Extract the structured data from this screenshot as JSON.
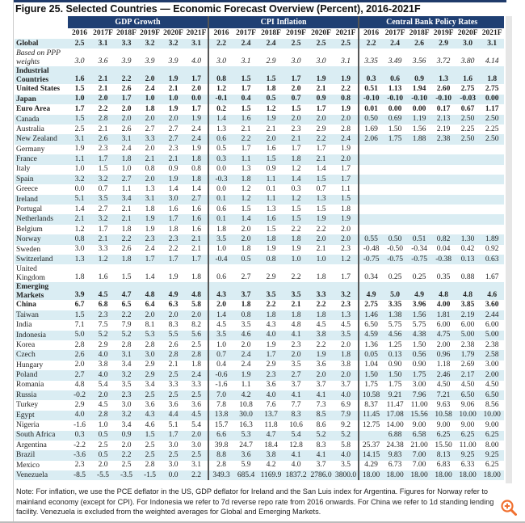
{
  "title": "Figure 25. Selected Countries — Economic Forecast Overview (Percent), 2016-2021F",
  "groups": [
    "GDP Growth",
    "CPI Inflation",
    "Central Bank Policy Rates"
  ],
  "years": [
    "2016",
    "2017F",
    "2018F",
    "2019F",
    "2020F",
    "2021F"
  ],
  "rows": [
    {
      "name": "Global",
      "style": "b",
      "gdp": [
        "2.5",
        "3.1",
        "3.3",
        "3.2",
        "3.2",
        "3.1"
      ],
      "cpi": [
        "2.2",
        "2.4",
        "2.4",
        "2.5",
        "2.5",
        "2.5"
      ],
      "cb": [
        "2.2",
        "2.4",
        "2.6",
        "2.9",
        "3.0",
        "3.1"
      ]
    },
    {
      "name": "Based on PPP weights",
      "style": "i two",
      "gdp": [
        "3.0",
        "3.6",
        "3.9",
        "3.9",
        "3.9",
        "4.0"
      ],
      "cpi": [
        "3.0",
        "3.1",
        "2.9",
        "3.0",
        "3.0",
        "3.1"
      ],
      "cb": [
        "3.35",
        "3.49",
        "3.56",
        "3.72",
        "3.80",
        "4.14"
      ]
    },
    {
      "name": "Industrial Countries",
      "style": "b two",
      "gdp": [
        "1.6",
        "2.1",
        "2.2",
        "2.0",
        "1.9",
        "1.7"
      ],
      "cpi": [
        "0.8",
        "1.5",
        "1.5",
        "1.7",
        "1.9",
        "1.9"
      ],
      "cb": [
        "0.3",
        "0.6",
        "0.9",
        "1.3",
        "1.6",
        "1.8"
      ]
    },
    {
      "name": "United States",
      "style": "b",
      "gdp": [
        "1.5",
        "2.1",
        "2.6",
        "2.4",
        "2.1",
        "2.0"
      ],
      "cpi": [
        "1.2",
        "1.7",
        "1.8",
        "2.0",
        "2.1",
        "2.2"
      ],
      "cb": [
        "0.51",
        "1.13",
        "1.94",
        "2.60",
        "2.75",
        "2.75"
      ]
    },
    {
      "name": "Japan",
      "style": "b",
      "gdp": [
        "1.0",
        "2.0",
        "1.7",
        "1.0",
        "1.0",
        "0.0"
      ],
      "cpi": [
        "-0.1",
        "0.4",
        "0.5",
        "0.7",
        "0.9",
        "0.8"
      ],
      "cb": [
        "-0.10",
        "-0.10",
        "-0.10",
        "-0.10",
        "-0.03",
        "0.00"
      ]
    },
    {
      "name": "Euro Area",
      "style": "b",
      "gdp": [
        "1.7",
        "2.2",
        "2.0",
        "1.8",
        "1.9",
        "1.7"
      ],
      "cpi": [
        "0.2",
        "1.5",
        "1.2",
        "1.5",
        "1.7",
        "1.9"
      ],
      "cb": [
        "0.01",
        "0.00",
        "0.00",
        "0.17",
        "0.67",
        "1.17"
      ]
    },
    {
      "name": "Canada",
      "style": "",
      "gdp": [
        "1.5",
        "2.8",
        "2.0",
        "2.0",
        "2.0",
        "1.9"
      ],
      "cpi": [
        "1.4",
        "1.6",
        "1.9",
        "2.0",
        "2.0",
        "2.0"
      ],
      "cb": [
        "0.50",
        "0.69",
        "1.19",
        "2.13",
        "2.50",
        "2.50"
      ]
    },
    {
      "name": "Australia",
      "style": "",
      "gdp": [
        "2.5",
        "2.1",
        "2.6",
        "2.7",
        "2.7",
        "2.4"
      ],
      "cpi": [
        "1.3",
        "2.1",
        "2.1",
        "2.3",
        "2.9",
        "2.8"
      ],
      "cb": [
        "1.69",
        "1.50",
        "1.56",
        "2.19",
        "2.25",
        "2.25"
      ]
    },
    {
      "name": "New Zealand",
      "style": "",
      "gdp": [
        "3.1",
        "2.6",
        "3.1",
        "3.3",
        "2.7",
        "2.4"
      ],
      "cpi": [
        "0.6",
        "2.2",
        "2.0",
        "2.1",
        "2.2",
        "2.4"
      ],
      "cb": [
        "2.06",
        "1.75",
        "1.88",
        "2.38",
        "2.50",
        "2.50"
      ]
    },
    {
      "name": "Germany",
      "style": "",
      "gdp": [
        "1.9",
        "2.3",
        "2.4",
        "2.0",
        "2.3",
        "1.9"
      ],
      "cpi": [
        "0.5",
        "1.7",
        "1.6",
        "1.7",
        "1.7",
        "1.9"
      ],
      "cb": [
        "",
        "",
        "",
        "",
        "",
        ""
      ]
    },
    {
      "name": "France",
      "style": "",
      "gdp": [
        "1.1",
        "1.7",
        "1.8",
        "2.1",
        "2.1",
        "1.8"
      ],
      "cpi": [
        "0.3",
        "1.1",
        "1.5",
        "1.8",
        "2.1",
        "2.0"
      ],
      "cb": [
        "",
        "",
        "",
        "",
        "",
        ""
      ]
    },
    {
      "name": "Italy",
      "style": "",
      "gdp": [
        "1.0",
        "1.5",
        "1.0",
        "0.8",
        "0.9",
        "0.8"
      ],
      "cpi": [
        "0.0",
        "1.3",
        "0.9",
        "1.2",
        "1.4",
        "1.7"
      ],
      "cb": [
        "",
        "",
        "",
        "",
        "",
        ""
      ]
    },
    {
      "name": "Spain",
      "style": "",
      "gdp": [
        "3.2",
        "3.2",
        "2.7",
        "2.0",
        "1.9",
        "1.8"
      ],
      "cpi": [
        "-0.3",
        "1.8",
        "1.1",
        "1.4",
        "1.5",
        "1.7"
      ],
      "cb": [
        "",
        "",
        "",
        "",
        "",
        ""
      ]
    },
    {
      "name": "Greece",
      "style": "",
      "gdp": [
        "0.0",
        "0.7",
        "1.1",
        "1.3",
        "1.4",
        "1.4"
      ],
      "cpi": [
        "0.0",
        "1.2",
        "0.1",
        "0.3",
        "0.7",
        "1.1"
      ],
      "cb": [
        "",
        "",
        "",
        "",
        "",
        ""
      ]
    },
    {
      "name": "Ireland",
      "style": "",
      "gdp": [
        "5.1",
        "3.5",
        "3.4",
        "3.1",
        "3.0",
        "2.7"
      ],
      "cpi": [
        "0.1",
        "1.2",
        "1.1",
        "1.2",
        "1.3",
        "1.5"
      ],
      "cb": [
        "",
        "",
        "",
        "",
        "",
        ""
      ]
    },
    {
      "name": "Portugal",
      "style": "",
      "gdp": [
        "1.4",
        "2.7",
        "2.1",
        "1.8",
        "1.6",
        "1.6"
      ],
      "cpi": [
        "0.6",
        "1.5",
        "1.3",
        "1.5",
        "1.5",
        "1.8"
      ],
      "cb": [
        "",
        "",
        "",
        "",
        "",
        ""
      ]
    },
    {
      "name": "Netherlands",
      "style": "",
      "gdp": [
        "2.1",
        "3.2",
        "2.1",
        "1.9",
        "1.7",
        "1.6"
      ],
      "cpi": [
        "0.1",
        "1.4",
        "1.6",
        "1.5",
        "1.9",
        "1.9"
      ],
      "cb": [
        "",
        "",
        "",
        "",
        "",
        ""
      ]
    },
    {
      "name": "Belgium",
      "style": "",
      "gdp": [
        "1.2",
        "1.7",
        "1.8",
        "1.9",
        "1.8",
        "1.6"
      ],
      "cpi": [
        "1.8",
        "2.0",
        "1.5",
        "2.2",
        "2.2",
        "2.0"
      ],
      "cb": [
        "",
        "",
        "",
        "",
        "",
        ""
      ]
    },
    {
      "name": "Norway",
      "style": "",
      "gdp": [
        "0.8",
        "2.1",
        "2.2",
        "2.3",
        "2.3",
        "2.1"
      ],
      "cpi": [
        "3.5",
        "2.0",
        "1.8",
        "1.8",
        "2.0",
        "2.0"
      ],
      "cb": [
        "0.55",
        "0.50",
        "0.51",
        "0.82",
        "1.30",
        "1.89"
      ]
    },
    {
      "name": "Sweden",
      "style": "",
      "gdp": [
        "3.0",
        "3.3",
        "2.6",
        "2.4",
        "2.2",
        "2.1"
      ],
      "cpi": [
        "1.0",
        "1.8",
        "1.9",
        "1.9",
        "2.1",
        "2.3"
      ],
      "cb": [
        "-0.48",
        "-0.50",
        "-0.34",
        "0.04",
        "0.42",
        "0.92"
      ]
    },
    {
      "name": "Switzerland",
      "style": "",
      "gdp": [
        "1.3",
        "1.2",
        "1.8",
        "1.7",
        "1.7",
        "1.7"
      ],
      "cpi": [
        "-0.4",
        "0.5",
        "0.8",
        "1.0",
        "1.0",
        "1.2"
      ],
      "cb": [
        "-0.75",
        "-0.75",
        "-0.75",
        "-0.38",
        "0.13",
        "0.63"
      ]
    },
    {
      "name": "United Kingdom",
      "style": "two",
      "gdp": [
        "1.8",
        "1.6",
        "1.5",
        "1.4",
        "1.9",
        "1.8"
      ],
      "cpi": [
        "0.6",
        "2.7",
        "2.9",
        "2.2",
        "1.8",
        "1.7"
      ],
      "cb": [
        "0.34",
        "0.25",
        "0.25",
        "0.35",
        "0.88",
        "1.67"
      ]
    },
    {
      "name": "Emerging Markets",
      "style": "b two",
      "gdp": [
        "3.9",
        "4.5",
        "4.7",
        "4.8",
        "4.9",
        "4.8"
      ],
      "cpi": [
        "4.3",
        "3.7",
        "3.5",
        "3.5",
        "3.3",
        "3.2"
      ],
      "cb": [
        "4.9",
        "5.0",
        "4.9",
        "4.8",
        "4.8",
        "4.6"
      ]
    },
    {
      "name": "China",
      "style": "b",
      "gdp": [
        "6.7",
        "6.8",
        "6.5",
        "6.4",
        "6.3",
        "5.8"
      ],
      "cpi": [
        "2.0",
        "1.8",
        "2.2",
        "2.1",
        "2.2",
        "2.3"
      ],
      "cb": [
        "2.75",
        "3.35",
        "3.96",
        "4.00",
        "3.85",
        "3.60"
      ]
    },
    {
      "name": "Taiwan",
      "style": "",
      "gdp": [
        "1.5",
        "2.3",
        "2.2",
        "2.0",
        "2.0",
        "2.0"
      ],
      "cpi": [
        "1.4",
        "0.8",
        "1.8",
        "1.8",
        "1.8",
        "1.3"
      ],
      "cb": [
        "1.46",
        "1.38",
        "1.56",
        "1.81",
        "2.19",
        "2.44"
      ]
    },
    {
      "name": "India",
      "style": "",
      "gdp": [
        "7.1",
        "7.5",
        "7.9",
        "8.1",
        "8.3",
        "8.2"
      ],
      "cpi": [
        "4.5",
        "3.5",
        "4.3",
        "4.8",
        "4.5",
        "4.5"
      ],
      "cb": [
        "6.50",
        "5.75",
        "5.75",
        "6.00",
        "6.00",
        "6.00"
      ]
    },
    {
      "name": "Indonesia",
      "style": "",
      "gdp": [
        "5.0",
        "5.2",
        "5.2",
        "5.3",
        "5.5",
        "5.6"
      ],
      "cpi": [
        "3.5",
        "4.6",
        "4.0",
        "4.1",
        "3.8",
        "3.5"
      ],
      "cb": [
        "4.59",
        "4.56",
        "4.38",
        "4.75",
        "5.00",
        "5.00"
      ]
    },
    {
      "name": "Korea",
      "style": "",
      "gdp": [
        "2.8",
        "2.9",
        "2.8",
        "2.8",
        "2.6",
        "2.5"
      ],
      "cpi": [
        "1.0",
        "2.0",
        "1.9",
        "2.3",
        "2.2",
        "2.0"
      ],
      "cb": [
        "1.36",
        "1.25",
        "1.50",
        "2.00",
        "2.38",
        "2.38"
      ]
    },
    {
      "name": "Czech",
      "style": "",
      "gdp": [
        "2.6",
        "4.0",
        "3.1",
        "3.0",
        "2.8",
        "2.8"
      ],
      "cpi": [
        "0.7",
        "2.4",
        "1.7",
        "2.0",
        "1.9",
        "1.8"
      ],
      "cb": [
        "0.05",
        "0.13",
        "0.56",
        "0.96",
        "1.79",
        "2.58"
      ]
    },
    {
      "name": "Hungary",
      "style": "",
      "gdp": [
        "2.0",
        "3.8",
        "3.4",
        "2.9",
        "2.1",
        "1.8"
      ],
      "cpi": [
        "0.4",
        "2.4",
        "2.9",
        "3.5",
        "3.6",
        "3.8"
      ],
      "cb": [
        "1.04",
        "0.90",
        "0.90",
        "1.18",
        "2.69",
        "3.00"
      ]
    },
    {
      "name": "Poland",
      "style": "",
      "gdp": [
        "2.7",
        "4.0",
        "3.2",
        "2.9",
        "2.5",
        "2.4"
      ],
      "cpi": [
        "-0.6",
        "1.9",
        "2.3",
        "2.7",
        "2.0",
        "2.0"
      ],
      "cb": [
        "1.50",
        "1.50",
        "1.75",
        "2.46",
        "2.17",
        "2.00"
      ]
    },
    {
      "name": "Romania",
      "style": "",
      "gdp": [
        "4.8",
        "5.4",
        "3.5",
        "3.4",
        "3.3",
        "3.3"
      ],
      "cpi": [
        "-1.6",
        "1.1",
        "3.6",
        "3.7",
        "3.7",
        "3.7"
      ],
      "cb": [
        "1.75",
        "1.75",
        "3.00",
        "4.50",
        "4.50",
        "4.50"
      ]
    },
    {
      "name": "Russia",
      "style": "",
      "gdp": [
        "-0.2",
        "2.0",
        "2.3",
        "2.5",
        "2.5",
        "2.5"
      ],
      "cpi": [
        "7.0",
        "4.2",
        "4.0",
        "4.1",
        "4.1",
        "4.0"
      ],
      "cb": [
        "10.58",
        "9.21",
        "7.96",
        "7.21",
        "6.50",
        "6.50"
      ]
    },
    {
      "name": "Turkey",
      "style": "",
      "gdp": [
        "2.9",
        "4.5",
        "3.0",
        "3.6",
        "3.6",
        "3.6"
      ],
      "cpi": [
        "7.8",
        "10.8",
        "7.6",
        "7.7",
        "7.3",
        "6.9"
      ],
      "cb": [
        "8.37",
        "11.47",
        "11.00",
        "9.63",
        "9.06",
        "8.56"
      ]
    },
    {
      "name": "Egypt",
      "style": "",
      "gdp": [
        "4.0",
        "2.8",
        "3.2",
        "4.3",
        "4.4",
        "4.5"
      ],
      "cpi": [
        "13.8",
        "30.0",
        "13.7",
        "8.3",
        "8.5",
        "7.9"
      ],
      "cb": [
        "11.45",
        "17.08",
        "15.56",
        "10.58",
        "10.00",
        "10.00"
      ]
    },
    {
      "name": "Nigeria",
      "style": "",
      "gdp": [
        "-1.6",
        "1.0",
        "3.4",
        "4.6",
        "5.1",
        "5.4"
      ],
      "cpi": [
        "15.7",
        "16.3",
        "11.8",
        "10.6",
        "8.6",
        "9.2"
      ],
      "cb": [
        "12.75",
        "14.00",
        "9.00",
        "9.00",
        "9.00",
        "9.00"
      ]
    },
    {
      "name": "South Africa",
      "style": "",
      "gdp": [
        "0.3",
        "0.5",
        "0.9",
        "1.5",
        "1.7",
        "2.0"
      ],
      "cpi": [
        "6.6",
        "5.3",
        "4.7",
        "5.4",
        "5.2",
        "5.2"
      ],
      "cb": [
        "",
        "6.88",
        "6.58",
        "6.25",
        "6.25",
        "6.25"
      ]
    },
    {
      "name": "Argentina",
      "style": "",
      "gdp": [
        "-2.2",
        "2.5",
        "2.0",
        "2.5",
        "3.0",
        "3.0"
      ],
      "cpi": [
        "39.8",
        "24.7",
        "18.4",
        "12.8",
        "8.3",
        "5.8"
      ],
      "cb": [
        "25.37",
        "24.38",
        "21.00",
        "15.50",
        "11.00",
        "8.00"
      ]
    },
    {
      "name": "Brazil",
      "style": "",
      "gdp": [
        "-3.6",
        "0.5",
        "2.2",
        "2.5",
        "2.5",
        "2.5"
      ],
      "cpi": [
        "8.8",
        "3.6",
        "3.8",
        "4.1",
        "4.1",
        "4.0"
      ],
      "cb": [
        "14.15",
        "9.83",
        "7.00",
        "8.13",
        "9.25",
        "9.25"
      ]
    },
    {
      "name": "Mexico",
      "style": "",
      "gdp": [
        "2.3",
        "2.0",
        "2.5",
        "2.8",
        "3.0",
        "3.1"
      ],
      "cpi": [
        "2.8",
        "5.9",
        "4.2",
        "4.0",
        "3.7",
        "3.5"
      ],
      "cb": [
        "4.29",
        "6.73",
        "7.00",
        "6.83",
        "6.33",
        "6.25"
      ]
    },
    {
      "name": "Venezuela",
      "style": "",
      "gdp": [
        "-8.5",
        "-5.5",
        "-3.5",
        "-1.5",
        "0.0",
        "2.2"
      ],
      "cpi": [
        "349.3",
        "685.4",
        "1169.9",
        "1837.2",
        "2786.0",
        "3800.0"
      ],
      "cb": [
        "18.00",
        "18.00",
        "18.00",
        "18.00",
        "18.00",
        "18.00"
      ]
    }
  ],
  "note": "Note: For inflation, we use the PCE deflator in the US, GDP deflator for Ireland and the San Luis index for Argentina. Figures for Norway refer to mainland economy (except for CPI). For Indonesia we refer to 7d reverse repo rate from 2016 onwards. For China we refer to 1d standing lending facility. Venezuela is excluded from the weighted averages for Global and Emerging Markets.",
  "colors": {
    "header_bg": "#1f3f73",
    "stripe": "#daedf3",
    "zoom_icon": "#f07030"
  },
  "icons": {
    "zoom": "zoom-in-icon"
  }
}
